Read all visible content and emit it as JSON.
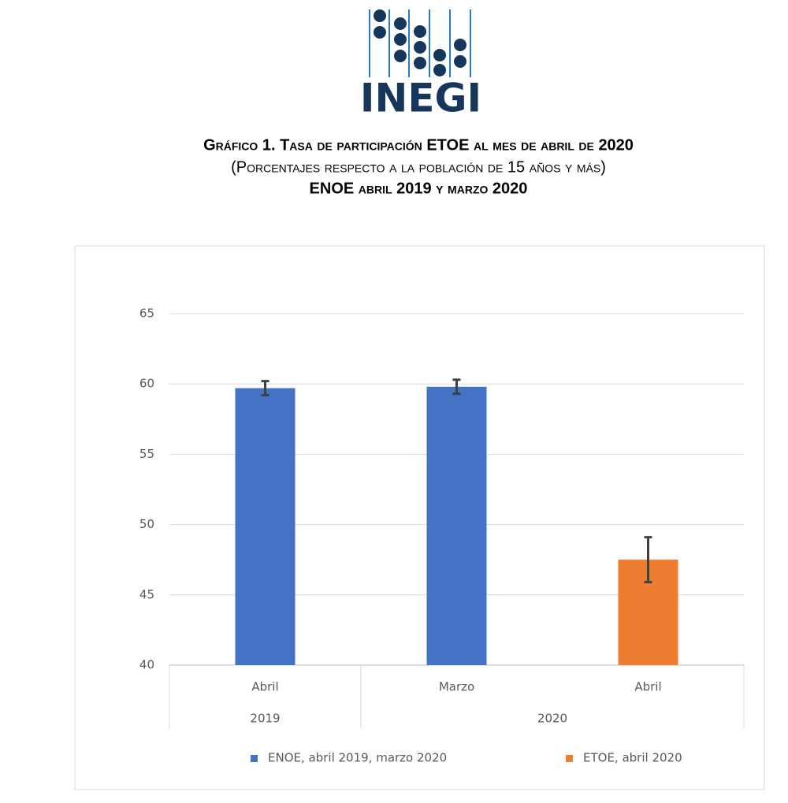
{
  "header": {
    "logo": "INEGI",
    "title": "Gráfico 1. Tasa de participación ETOE al mes de abril de 2020",
    "subtitle": "(Porcentajes respecto a la población de 15 años y más)",
    "note": "ENOE abril 2019 y marzo 2020"
  },
  "chart_data": {
    "type": "bar",
    "categories": [
      "Abril",
      "Marzo",
      "Abril"
    ],
    "groups": [
      {
        "name": "2019",
        "count": 1
      },
      {
        "name": "2020",
        "count": 2
      }
    ],
    "series": [
      {
        "name": "ENOE, abril 2019, marzo 2020",
        "color": "#4472c4",
        "values": [
          59.7,
          59.8,
          null
        ],
        "errors": [
          0.5,
          0.5,
          null
        ]
      },
      {
        "name": "ETOE, abril 2020",
        "color": "#ed7d31",
        "values": [
          null,
          null,
          47.5
        ],
        "errors": [
          null,
          null,
          1.6
        ]
      }
    ],
    "ylim": [
      40,
      65
    ],
    "yticks": [
      40,
      45,
      50,
      55,
      60,
      65
    ],
    "grid": true,
    "legend": "bottom"
  }
}
